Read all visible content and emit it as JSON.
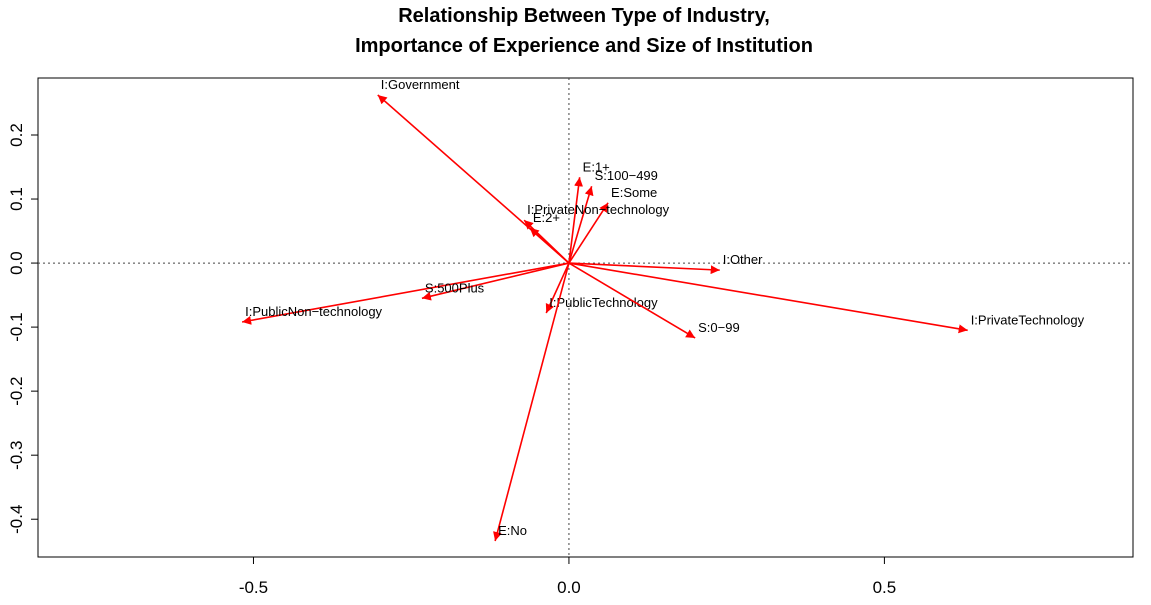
{
  "chart_data": {
    "type": "arrow",
    "title": [
      "Relationship Between Type of Industry,",
      "Importance of Experience and Size of Institution"
    ],
    "labels": [
      "I:Government",
      "E:1+",
      "S:100−499",
      "E:Some",
      "I:PrivateNon−technology",
      "E:2+",
      "I:Other",
      "I:PublicNon−technology",
      "S:500Plus",
      "I:PublicTechnology",
      "S:0−99",
      "I:PrivateTechnology",
      "E:No"
    ],
    "x": [
      -0.303,
      0.017,
      0.036,
      0.062,
      -0.071,
      -0.062,
      0.239,
      -0.518,
      -0.233,
      -0.036,
      0.2,
      0.632,
      -0.117
    ],
    "values": [
      0.2625,
      0.134,
      0.12,
      0.094,
      0.067,
      0.055,
      -0.011,
      -0.092,
      -0.055,
      -0.078,
      -0.117,
      -0.105,
      -0.434
    ],
    "color": "#ff0000",
    "xlim": [
      -0.8415,
      0.894
    ],
    "ylim": [
      -0.459,
      0.289
    ],
    "xticks": [
      -0.5,
      {
        "value": 0,
        "label": "0.0"
      },
      0.5
    ],
    "yticks": [
      -0.4,
      -0.3,
      -0.2,
      -0.1,
      {
        "value": 0,
        "label": "0.0"
      },
      0.1,
      0.2
    ],
    "zero_lines": true
  }
}
